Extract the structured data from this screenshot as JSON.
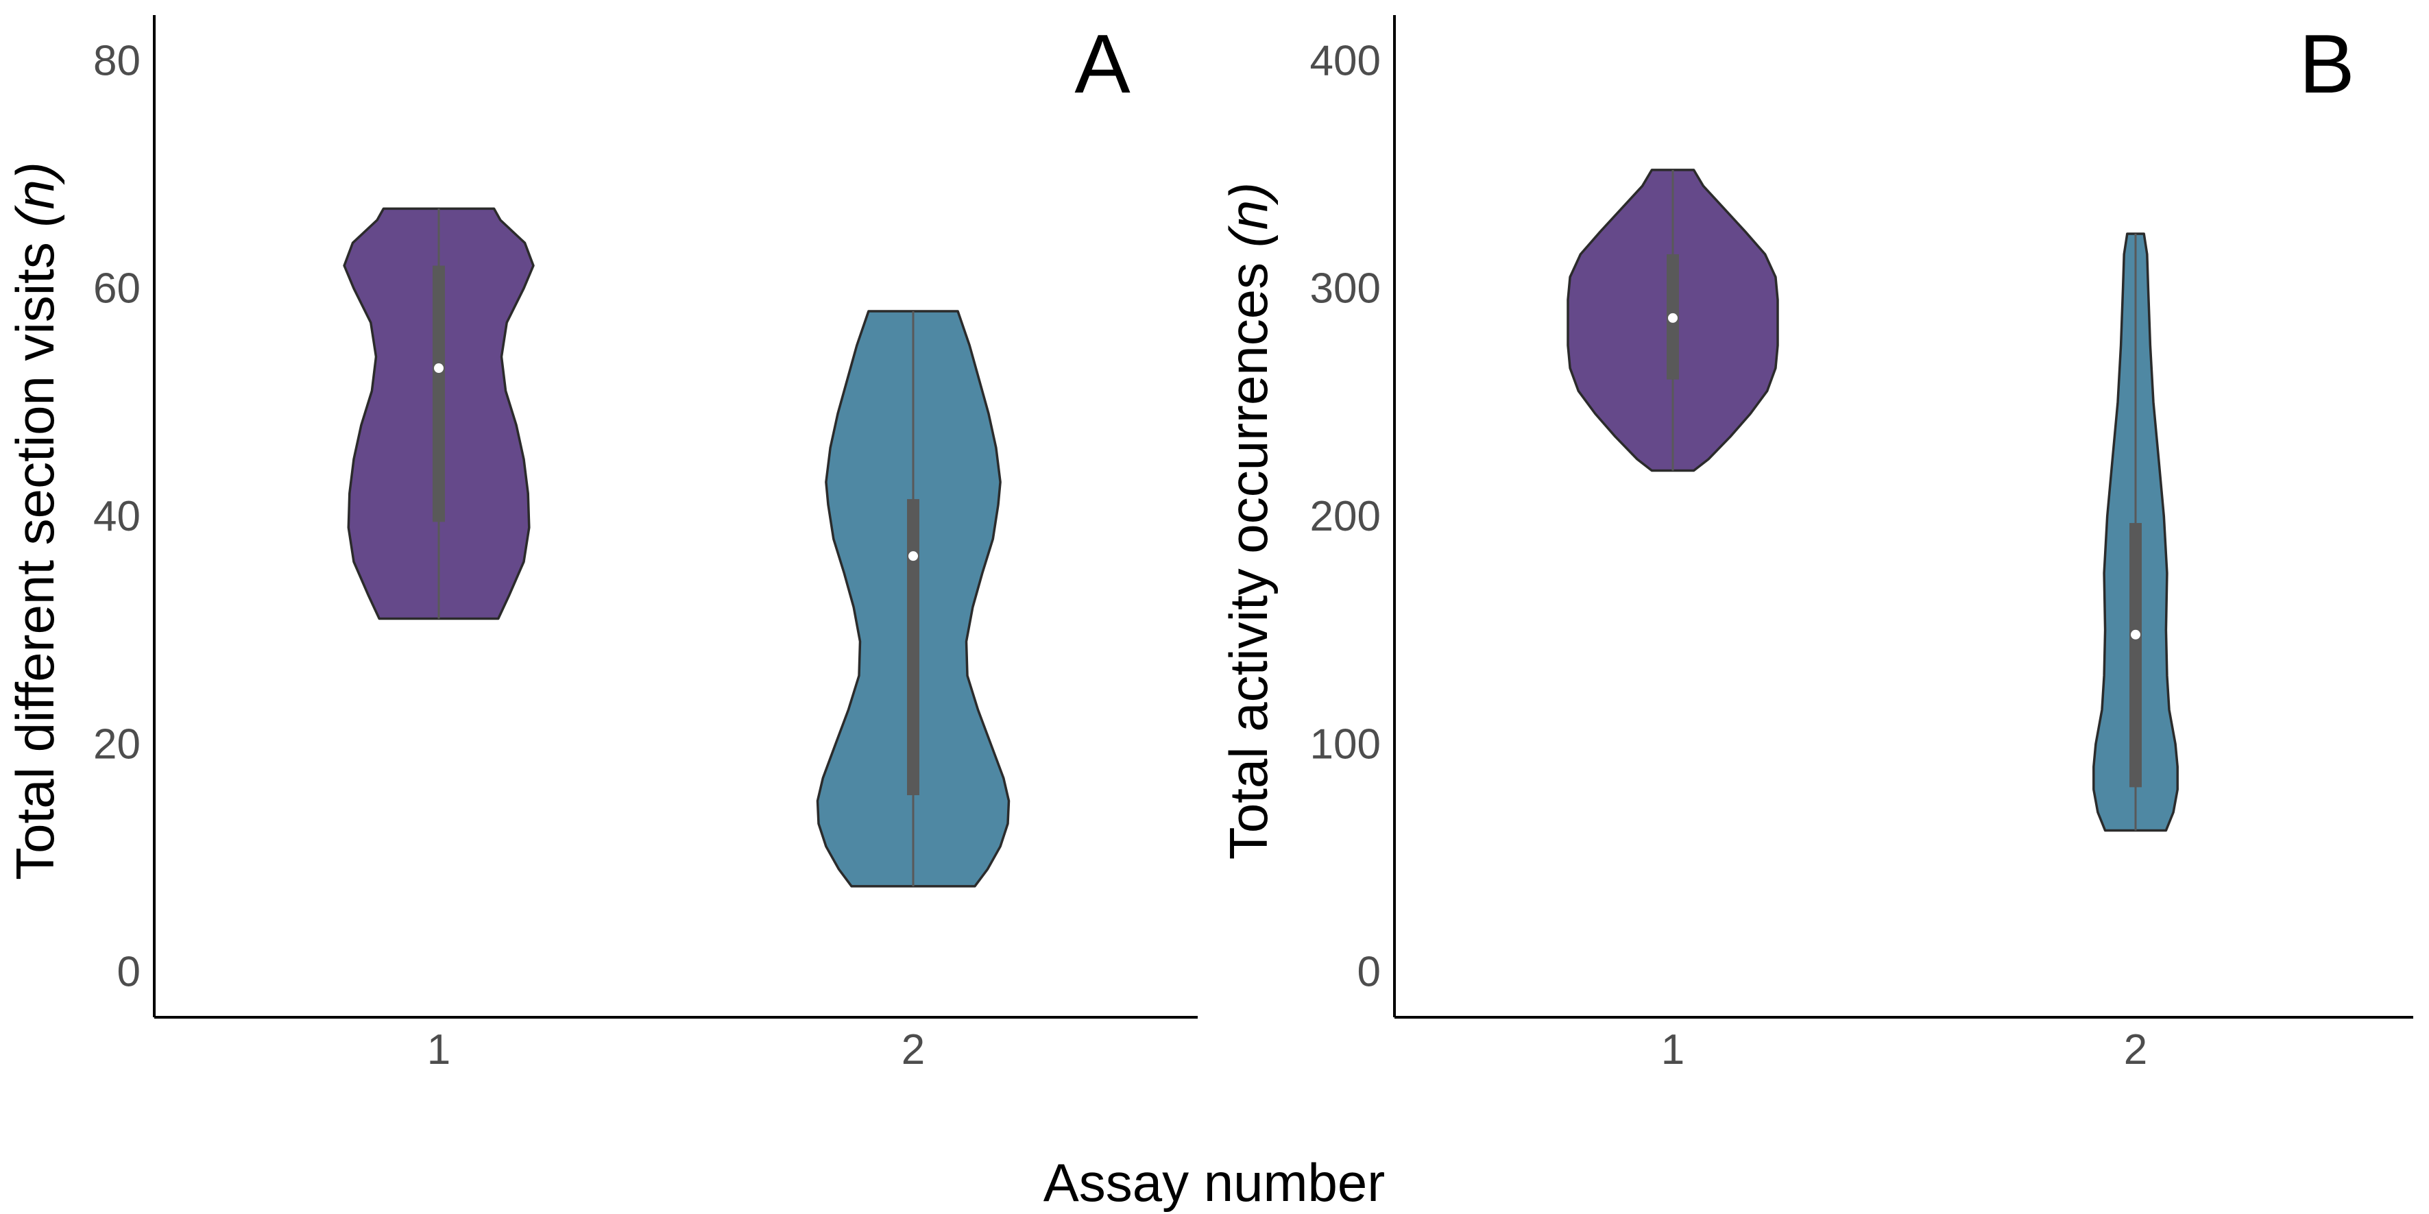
{
  "figure": {
    "shared_xlabel": "Assay number"
  },
  "chart_data": [
    {
      "type": "violin",
      "panel_label": "A",
      "xlabel": "",
      "ylabel": "Total different section visits (n)",
      "ylabel_parts": {
        "main": "Total different section visits ",
        "italic": "(n)"
      },
      "categories": [
        "1",
        "2"
      ],
      "yticks": [
        "0",
        "20",
        "40",
        "60",
        "80"
      ],
      "ylim": [
        -4,
        84
      ],
      "grid": false,
      "colors": {
        "1": "#65498a",
        "2": "#4f88a3",
        "box": "#595959",
        "median": "#ffffff",
        "outline": "#2b2b2b"
      },
      "violins": [
        {
          "category": "1",
          "min": 31,
          "max": 67,
          "q1": 39.5,
          "median": 53,
          "q3": 62,
          "density_profile": [
            [
              31,
              0.56
            ],
            [
              33,
              0.66
            ],
            [
              36,
              0.8
            ],
            [
              39,
              0.85
            ],
            [
              42,
              0.84
            ],
            [
              45,
              0.8
            ],
            [
              48,
              0.73
            ],
            [
              51,
              0.63
            ],
            [
              54,
              0.59
            ],
            [
              57,
              0.64
            ],
            [
              60,
              0.8
            ],
            [
              62,
              0.89
            ],
            [
              64,
              0.81
            ],
            [
              66,
              0.58
            ],
            [
              67,
              0.52
            ]
          ]
        },
        {
          "category": "2",
          "min": 7.5,
          "max": 58,
          "q1": 15.5,
          "median": 36.5,
          "q3": 41.5,
          "density_profile": [
            [
              7.5,
              0.58
            ],
            [
              9,
              0.7
            ],
            [
              11,
              0.82
            ],
            [
              13,
              0.89
            ],
            [
              15,
              0.9
            ],
            [
              17,
              0.85
            ],
            [
              20,
              0.73
            ],
            [
              23,
              0.61
            ],
            [
              26,
              0.51
            ],
            [
              29,
              0.5
            ],
            [
              32,
              0.56
            ],
            [
              35,
              0.65
            ],
            [
              38,
              0.75
            ],
            [
              41,
              0.8
            ],
            [
              43,
              0.82
            ],
            [
              46,
              0.78
            ],
            [
              49,
              0.71
            ],
            [
              52,
              0.62
            ],
            [
              55,
              0.53
            ],
            [
              58,
              0.42
            ]
          ]
        }
      ]
    },
    {
      "type": "violin",
      "panel_label": "B",
      "xlabel": "",
      "ylabel": "Total activity occurrences (n)",
      "ylabel_parts": {
        "main": "Total activity occurrences ",
        "italic": "(n)"
      },
      "categories": [
        "1",
        "2"
      ],
      "yticks": [
        "0",
        "100",
        "200",
        "300",
        "400"
      ],
      "ylim": [
        -20,
        420
      ],
      "grid": false,
      "colors": {
        "1": "#65498a",
        "2": "#4f88a3",
        "box": "#595959",
        "median": "#ffffff",
        "outline": "#2b2b2b"
      },
      "violins": [
        {
          "category": "1",
          "min": 220,
          "max": 352,
          "q1": 260,
          "median": 287,
          "q3": 315,
          "density_profile": [
            [
              220,
              0.2
            ],
            [
              225,
              0.34
            ],
            [
              235,
              0.55
            ],
            [
              245,
              0.74
            ],
            [
              255,
              0.9
            ],
            [
              265,
              0.98
            ],
            [
              275,
              1.0
            ],
            [
              285,
              1.0
            ],
            [
              295,
              1.0
            ],
            [
              305,
              0.98
            ],
            [
              315,
              0.88
            ],
            [
              325,
              0.69
            ],
            [
              335,
              0.49
            ],
            [
              345,
              0.29
            ],
            [
              352,
              0.2
            ]
          ]
        },
        {
          "category": "2",
          "min": 62,
          "max": 324,
          "q1": 81,
          "median": 148,
          "q3": 197,
          "density_profile": [
            [
              62,
              0.29
            ],
            [
              70,
              0.36
            ],
            [
              80,
              0.4
            ],
            [
              90,
              0.4
            ],
            [
              100,
              0.38
            ],
            [
              115,
              0.32
            ],
            [
              130,
              0.3
            ],
            [
              150,
              0.29
            ],
            [
              175,
              0.3
            ],
            [
              200,
              0.27
            ],
            [
              225,
              0.22
            ],
            [
              250,
              0.17
            ],
            [
              275,
              0.14
            ],
            [
              300,
              0.12
            ],
            [
              315,
              0.11
            ],
            [
              324,
              0.08
            ]
          ]
        }
      ]
    }
  ]
}
